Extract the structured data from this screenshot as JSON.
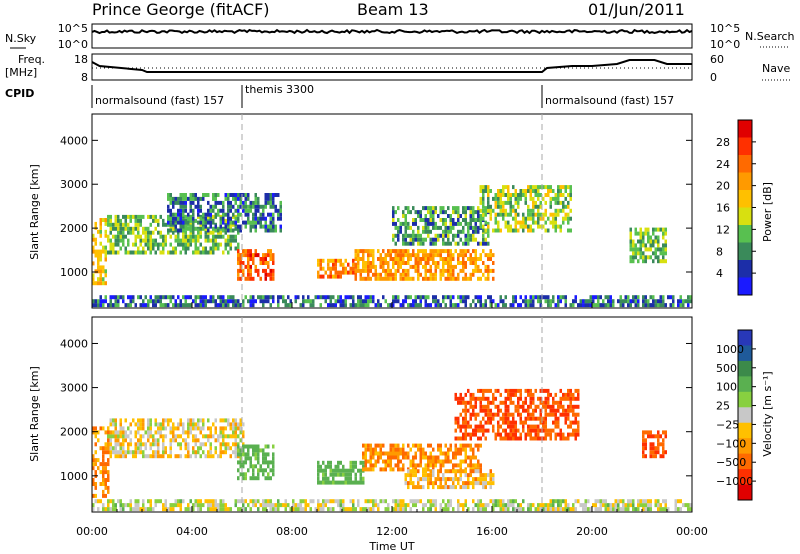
{
  "header": {
    "station": "Prince George (fitACF)",
    "beam": "Beam 13",
    "date": "01/Jun/2011"
  },
  "top_panel": {
    "nsky_label": "N.Sky",
    "nsearch_label": "N.Search",
    "freq_label_1": "Freq.",
    "freq_label_2": "[MHz]",
    "nave_label": "Nave",
    "cpid_label": "CPID",
    "left_ticks_noise": [
      "10^5",
      "10^0"
    ],
    "right_ticks_noise": [
      "10^5",
      "10^0"
    ],
    "left_ticks_freq": [
      "18",
      "8"
    ],
    "right_ticks_freq": [
      "60",
      "0"
    ],
    "cpid_entries": [
      {
        "text": "normalsound (fast) 157",
        "start_hour": 0.0
      },
      {
        "text": "themis 3300",
        "start_hour": 6.0
      },
      {
        "text": "normalsound (fast) 157",
        "start_hour": 18.0
      }
    ]
  },
  "power_panel": {
    "ylabel": "Slant Range [km]",
    "colorbar_label": "Power [dB]",
    "colorbar_ticks": [
      "28",
      "24",
      "20",
      "16",
      "12",
      "8",
      "4"
    ],
    "colorbar_colors": [
      "#e00000",
      "#ff3000",
      "#ff6a00",
      "#ff9a00",
      "#ffc000",
      "#d8e010",
      "#58c050",
      "#3a8a5a",
      "#1c2ea8",
      "#1a1aff"
    ]
  },
  "velocity_panel": {
    "ylabel": "Slant Range [km]",
    "colorbar_label": "Velocity [m s⁻¹]",
    "colorbar_ticks": [
      "1000",
      "500",
      "100",
      "25",
      "−25",
      "−100",
      "−500",
      "−1000"
    ],
    "colorbar_colors": [
      "#2838b8",
      "#1f5a9a",
      "#3c8a4a",
      "#5ab050",
      "#88d040",
      "#c8c8c8",
      "#ffc000",
      "#ff9a00",
      "#ff6a00",
      "#ff3000",
      "#e00000"
    ]
  },
  "x_axis": {
    "label": "Time UT",
    "ticks": [
      "00:00",
      "04:00",
      "08:00",
      "12:00",
      "16:00",
      "20:00",
      "00:00"
    ]
  },
  "y_ticks": [
    "4000",
    "3000",
    "2000",
    "1000"
  ],
  "chart_data": [
    {
      "type": "heatmap",
      "name": "power",
      "xlabel": "Time UT",
      "ylabel": "Slant Range [km]",
      "xlim_hours": [
        0,
        24
      ],
      "ylim_km": [
        180,
        4600
      ],
      "colorbar": "Power [dB]",
      "clim": [
        0,
        30
      ],
      "regions": [
        {
          "t0": 0.0,
          "t1": 0.6,
          "r0": 700,
          "r1": 2200,
          "level": 16
        },
        {
          "t0": 0.6,
          "t1": 5.8,
          "r0": 1400,
          "r1": 2300,
          "level": 10
        },
        {
          "t0": 3.0,
          "t1": 7.5,
          "r0": 1900,
          "r1": 2800,
          "level": 6
        },
        {
          "t0": 5.8,
          "t1": 7.2,
          "r0": 800,
          "r1": 1500,
          "level": 24
        },
        {
          "t0": 9.0,
          "t1": 10.5,
          "r0": 850,
          "r1": 1250,
          "level": 22
        },
        {
          "t0": 10.5,
          "t1": 16.0,
          "r0": 800,
          "r1": 1500,
          "level": 20
        },
        {
          "t0": 12.0,
          "t1": 15.8,
          "r0": 1600,
          "r1": 2500,
          "level": 8
        },
        {
          "t0": 15.5,
          "t1": 19.2,
          "r0": 1900,
          "r1": 2900,
          "level": 12
        },
        {
          "t0": 21.5,
          "t1": 23.0,
          "r0": 1200,
          "r1": 2000,
          "level": 10
        },
        {
          "t0": 0.0,
          "t1": 24.0,
          "r0": 200,
          "r1": 400,
          "level": 5
        }
      ]
    },
    {
      "type": "heatmap",
      "name": "velocity",
      "xlabel": "Time UT",
      "ylabel": "Slant Range [km]",
      "xlim_hours": [
        0,
        24
      ],
      "ylim_km": [
        180,
        4600
      ],
      "colorbar": "Velocity [m s⁻¹]",
      "clim": [
        -1000,
        1000
      ],
      "regions": [
        {
          "t0": 0.0,
          "t1": 0.7,
          "r0": 500,
          "r1": 2100,
          "vel": -100
        },
        {
          "t0": 0.6,
          "t1": 6.0,
          "r0": 1400,
          "r1": 2300,
          "vel": 0
        },
        {
          "t0": 5.8,
          "t1": 7.2,
          "r0": 900,
          "r1": 1700,
          "vel": 150
        },
        {
          "t0": 9.0,
          "t1": 10.8,
          "r0": 800,
          "r1": 1300,
          "vel": 150
        },
        {
          "t0": 10.8,
          "t1": 15.5,
          "r0": 1100,
          "r1": 1700,
          "vel": -100
        },
        {
          "t0": 12.5,
          "t1": 16.0,
          "r0": 700,
          "r1": 1100,
          "vel": -50
        },
        {
          "t0": 14.5,
          "t1": 19.5,
          "r0": 1800,
          "r1": 2900,
          "vel": -300
        },
        {
          "t0": 22.0,
          "t1": 23.0,
          "r0": 1400,
          "r1": 2000,
          "vel": -300
        },
        {
          "t0": 0.0,
          "t1": 24.0,
          "r0": 200,
          "r1": 400,
          "vel": 40
        }
      ]
    }
  ]
}
